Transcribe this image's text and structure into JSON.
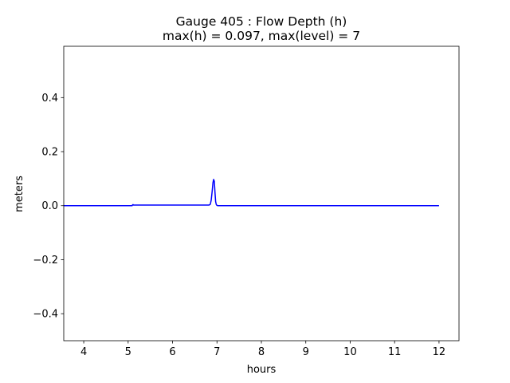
{
  "chart_data": {
    "type": "line",
    "title": "Gauge 405 : Flow Depth (h)",
    "subtitle": "max(h) =   0.097,    max(level) = 7",
    "xlabel": "hours",
    "ylabel": "meters",
    "xlim": [
      3.55,
      12.45
    ],
    "ylim": [
      -0.5,
      0.59
    ],
    "xticks": [
      4,
      5,
      6,
      7,
      8,
      9,
      10,
      11,
      12
    ],
    "xtick_labels": [
      "4",
      "5",
      "6",
      "7",
      "8",
      "9",
      "10",
      "11",
      "12"
    ],
    "yticks": [
      -0.4,
      -0.2,
      0.0,
      0.2,
      0.4
    ],
    "ytick_labels": [
      "−0.4",
      "−0.2",
      "0.0",
      "0.2",
      "0.4"
    ],
    "grid": false,
    "series": [
      {
        "color": "#0000ff",
        "x": [
          3.55,
          4.0,
          4.5,
          5.0,
          5.09,
          5.1,
          5.11,
          5.12,
          5.2,
          5.5,
          6.0,
          6.5,
          6.82,
          6.85,
          6.87,
          6.89,
          6.91,
          6.925,
          6.94,
          6.955,
          6.97,
          6.985,
          7.0,
          7.02,
          7.05,
          7.2,
          8.0,
          9.0,
          10.0,
          11.0,
          12.0
        ],
        "y": [
          0.0,
          0.0,
          0.0,
          0.0,
          0.0,
          0.003,
          0.004,
          0.002,
          0.002,
          0.002,
          0.002,
          0.002,
          0.002,
          0.005,
          0.02,
          0.05,
          0.085,
          0.097,
          0.09,
          0.05,
          0.015,
          0.004,
          0.001,
          0.0,
          0.0,
          0.0,
          0.0,
          0.0,
          0.0,
          0.0,
          0.0
        ]
      }
    ]
  }
}
